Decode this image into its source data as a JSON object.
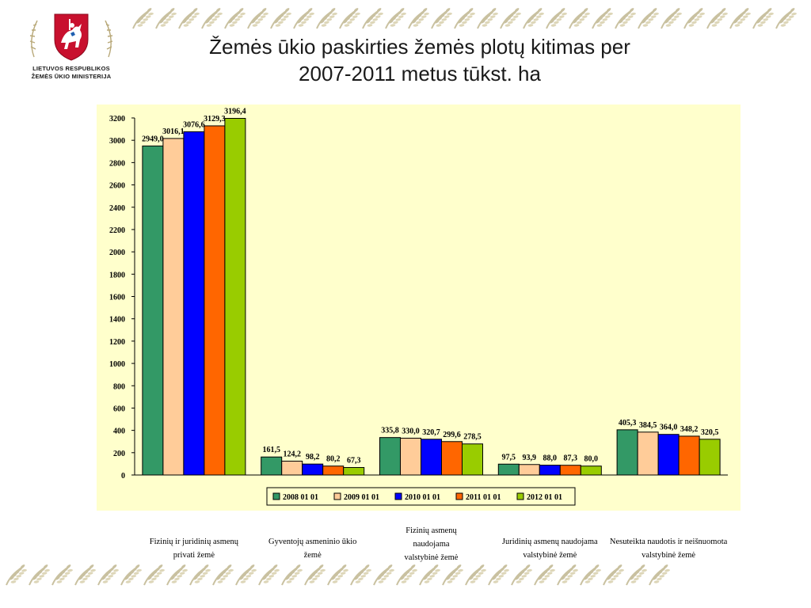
{
  "header": {
    "logo_line1": "LIETUVOS RESPUBLIKOS",
    "logo_line2": "ŽEMĖS ŪKIO MINISTERIJA",
    "title_line1": "Žemės ūkio paskirties žemės plotų kitimas per",
    "title_line2": "2007-2011 metus tūkst. ha"
  },
  "colors": {
    "series": [
      "#339966",
      "#ffcc99",
      "#0000ff",
      "#ff6600",
      "#99cc00"
    ],
    "plot_background": "#ffffcc",
    "ornament": "#c9c1a0"
  },
  "chart_data": {
    "type": "bar",
    "title": "Žemės ūkio paskirties žemės plotų kitimas per 2007-2011 metus tūkst. ha",
    "xlabel": "",
    "ylabel": "",
    "ylim": [
      0,
      3200
    ],
    "yticks": [
      0,
      200,
      400,
      600,
      800,
      1000,
      1200,
      1400,
      1600,
      1800,
      2000,
      2200,
      2400,
      2600,
      2800,
      3000,
      3200
    ],
    "grid": false,
    "legend_position": "bottom",
    "categories": [
      [
        "Fizinių ir juridinių asmenų",
        "privati žemė"
      ],
      [
        "Gyventojų asmeninio ūkio",
        "žemė"
      ],
      [
        "Fizinių asmenų",
        "naudojama",
        "valstybinė žemė"
      ],
      [
        "Juridinių asmenų naudojama",
        "valstybinė žemė"
      ],
      [
        "Nesuteikta naudotis ir neišnuomota",
        "valstybinė žemė"
      ]
    ],
    "series": [
      {
        "name": "2008 01 01",
        "values": [
          2949.0,
          161.5,
          335.8,
          97.5,
          405.3
        ],
        "labels": [
          "2949,0",
          "161,5",
          "335,8",
          "97,5",
          "405,3"
        ]
      },
      {
        "name": "2009 01 01",
        "values": [
          3016.1,
          124.2,
          330.0,
          93.9,
          384.5
        ],
        "labels": [
          "3016,1",
          "124,2",
          "330,0",
          "93,9",
          "384,5"
        ]
      },
      {
        "name": "2010 01 01",
        "values": [
          3076.6,
          98.2,
          320.7,
          88.0,
          364.0
        ],
        "labels": [
          "3076,6",
          "98,2",
          "320,7",
          "88,0",
          "364,0"
        ]
      },
      {
        "name": "2011 01 01",
        "values": [
          3129.3,
          80.2,
          299.6,
          87.3,
          348.2
        ],
        "labels": [
          "3129,3",
          "80,2",
          "299,6",
          "87,3",
          "348,2"
        ]
      },
      {
        "name": "2012 01 01",
        "values": [
          3196.4,
          67.3,
          278.5,
          80.0,
          320.5
        ],
        "labels": [
          "3196,4",
          "67,3",
          "278,5",
          "80,0",
          "320,5"
        ]
      }
    ]
  }
}
